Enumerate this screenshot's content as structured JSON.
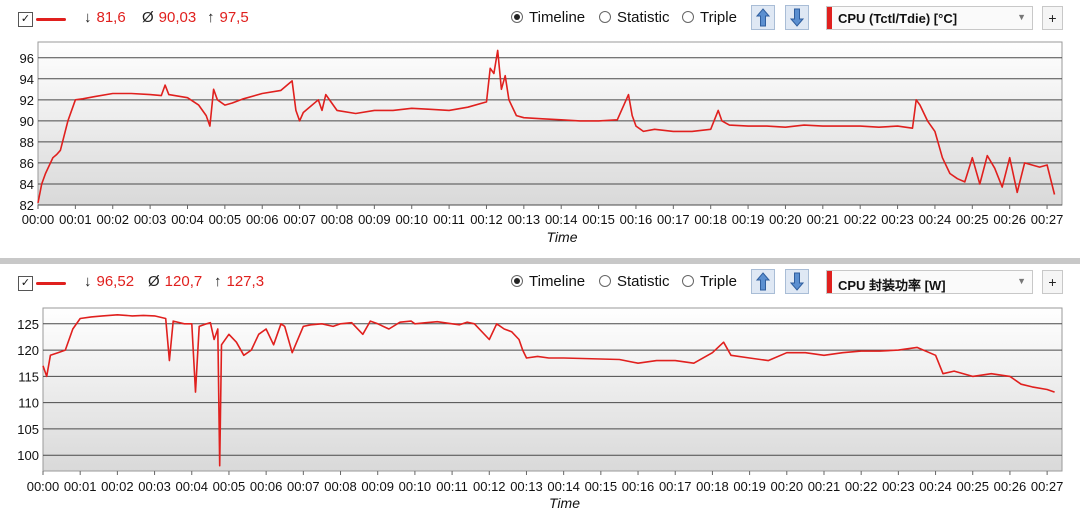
{
  "panels": [
    {
      "toolbar": {
        "checkbox_label": "✓",
        "series_color": "#e0201e",
        "stat_min_symbol": "↓",
        "stat_min": "81,6",
        "stat_avg_symbol": "Ø",
        "stat_avg": "90,03",
        "stat_max_symbol": "↑",
        "stat_max": "97,5",
        "radio_timeline": "Timeline",
        "radio_statistic": "Statistic",
        "radio_triple": "Triple",
        "selected_mode": "Timeline",
        "arrow_up_icon": "arrow-up-icon",
        "arrow_down_icon": "arrow-down-icon",
        "sensor_select": "CPU (Tctl/Tdie) [°C]",
        "add_label": "+"
      }
    },
    {
      "toolbar": {
        "checkbox_label": "✓",
        "series_color": "#e0201e",
        "stat_min_symbol": "↓",
        "stat_min": "96,52",
        "stat_avg_symbol": "Ø",
        "stat_avg": "120,7",
        "stat_max_symbol": "↑",
        "stat_max": "127,3",
        "radio_timeline": "Timeline",
        "radio_statistic": "Statistic",
        "radio_triple": "Triple",
        "selected_mode": "Timeline",
        "arrow_up_icon": "arrow-up-icon",
        "arrow_down_icon": "arrow-down-icon",
        "sensor_select": "CPU 封装功率 [W]",
        "add_label": "+"
      }
    }
  ],
  "chart_data": [
    {
      "type": "line",
      "xlabel": "Time",
      "ylabel": "",
      "xlim": [
        0,
        27.4
      ],
      "ylim": [
        82,
        97.5
      ],
      "y_ticks": [
        82,
        84,
        86,
        88,
        90,
        92,
        94,
        96
      ],
      "x_ticks": [
        "00:00",
        "00:01",
        "00:02",
        "00:03",
        "00:04",
        "00:05",
        "00:06",
        "00:07",
        "00:08",
        "00:09",
        "00:10",
        "00:11",
        "00:12",
        "00:13",
        "00:14",
        "00:15",
        "00:16",
        "00:17",
        "00:18",
        "00:19",
        "00:20",
        "00:21",
        "00:22",
        "00:23",
        "00:24",
        "00:25",
        "00:26",
        "00:27"
      ],
      "x_unit": "minutes",
      "grid": true,
      "line_color": "#e0201e",
      "series": [
        {
          "x": [
            0.0,
            0.1,
            0.2,
            0.4,
            0.5,
            0.6,
            0.8,
            1.0,
            1.2,
            1.5,
            2.0,
            2.5,
            3.0,
            3.3,
            3.4,
            3.5,
            4.0,
            4.3,
            4.5,
            4.6,
            4.7,
            4.8,
            5.0,
            5.2,
            5.5,
            6.0,
            6.5,
            6.8,
            6.9,
            7.0,
            7.1,
            7.5,
            7.6,
            7.7,
            8.0,
            8.5,
            9.0,
            9.5,
            10.0,
            10.5,
            11.0,
            11.5,
            12.0,
            12.1,
            12.2,
            12.3,
            12.4,
            12.5,
            12.6,
            12.8,
            13.0,
            13.5,
            14.0,
            14.5,
            15.0,
            15.5,
            15.8,
            15.9,
            16.0,
            16.2,
            16.5,
            17.0,
            17.5,
            18.0,
            18.2,
            18.3,
            18.5,
            19.0,
            19.5,
            20.0,
            20.5,
            21.0,
            21.5,
            22.0,
            22.5,
            23.0,
            23.4,
            23.5,
            23.6,
            23.8,
            24.0,
            24.2,
            24.4,
            24.6,
            24.8,
            25.0,
            25.2,
            25.4,
            25.6,
            25.8,
            26.0,
            26.2,
            26.4,
            26.6,
            26.8,
            27.0,
            27.2
          ],
          "y": [
            82.2,
            84.0,
            85.0,
            86.5,
            86.8,
            87.2,
            90.0,
            92.0,
            92.1,
            92.3,
            92.6,
            92.6,
            92.5,
            92.4,
            93.4,
            92.5,
            92.2,
            91.5,
            90.5,
            89.5,
            93.0,
            92.0,
            91.5,
            91.7,
            92.1,
            92.6,
            92.9,
            93.8,
            91.0,
            90.0,
            90.8,
            92.0,
            91.0,
            92.5,
            91.0,
            90.7,
            91.0,
            91.0,
            91.2,
            91.1,
            91.0,
            91.3,
            91.8,
            95.0,
            94.5,
            96.7,
            93.0,
            94.3,
            92.0,
            90.5,
            90.3,
            90.2,
            90.1,
            90.0,
            90.0,
            90.1,
            92.5,
            90.5,
            89.5,
            89.0,
            89.2,
            89.0,
            89.0,
            89.2,
            91.0,
            90.0,
            89.6,
            89.5,
            89.5,
            89.4,
            89.6,
            89.5,
            89.5,
            89.5,
            89.4,
            89.5,
            89.3,
            92.0,
            91.5,
            90.0,
            89.0,
            86.5,
            85.0,
            84.5,
            84.2,
            86.5,
            84.0,
            86.7,
            85.5,
            83.7,
            86.5,
            83.2,
            86.0,
            85.8,
            85.6,
            85.8,
            83.0
          ]
        }
      ]
    },
    {
      "type": "line",
      "xlabel": "Time",
      "ylabel": "",
      "xlim": [
        0,
        27.4
      ],
      "ylim": [
        97,
        128
      ],
      "y_ticks": [
        100,
        105,
        110,
        115,
        120,
        125
      ],
      "x_ticks": [
        "00:00",
        "00:01",
        "00:02",
        "00:03",
        "00:04",
        "00:05",
        "00:06",
        "00:07",
        "00:08",
        "00:09",
        "00:10",
        "00:11",
        "00:12",
        "00:13",
        "00:14",
        "00:15",
        "00:16",
        "00:17",
        "00:18",
        "00:19",
        "00:20",
        "00:21",
        "00:22",
        "00:23",
        "00:24",
        "00:25",
        "00:26",
        "00:27"
      ],
      "x_unit": "minutes",
      "grid": true,
      "line_color": "#e0201e",
      "series": [
        {
          "x": [
            0.0,
            0.1,
            0.2,
            0.4,
            0.6,
            0.8,
            1.0,
            1.3,
            1.6,
            2.0,
            2.4,
            2.7,
            3.0,
            3.3,
            3.4,
            3.5,
            3.8,
            4.0,
            4.1,
            4.2,
            4.4,
            4.5,
            4.6,
            4.7,
            4.75,
            4.8,
            5.0,
            5.2,
            5.4,
            5.6,
            5.8,
            6.0,
            6.2,
            6.4,
            6.5,
            6.7,
            7.0,
            7.2,
            7.5,
            7.8,
            8.0,
            8.3,
            8.6,
            8.8,
            9.0,
            9.3,
            9.6,
            9.9,
            10.0,
            10.3,
            10.6,
            11.0,
            11.2,
            11.4,
            11.6,
            12.0,
            12.2,
            12.4,
            12.6,
            12.8,
            12.9,
            13.0,
            13.3,
            13.6,
            14.0,
            14.5,
            15.0,
            15.5,
            16.0,
            16.5,
            17.0,
            17.5,
            18.0,
            18.3,
            18.5,
            19.0,
            19.5,
            20.0,
            20.5,
            21.0,
            21.5,
            22.0,
            22.5,
            23.0,
            23.5,
            24.0,
            24.2,
            24.5,
            25.0,
            25.5,
            26.0,
            26.3,
            26.6,
            27.0,
            27.2
          ],
          "y": [
            117.0,
            115.0,
            119.0,
            119.5,
            120.0,
            124.0,
            126.0,
            126.3,
            126.5,
            126.7,
            126.5,
            126.6,
            126.5,
            126.0,
            118.0,
            125.5,
            125.0,
            125.0,
            112.0,
            124.5,
            125.0,
            125.2,
            122.0,
            124.0,
            98.0,
            121.0,
            123.0,
            121.5,
            119.0,
            120.0,
            123.0,
            124.0,
            121.0,
            125.0,
            124.5,
            119.5,
            124.5,
            124.8,
            125.0,
            124.5,
            125.0,
            125.2,
            123.0,
            125.5,
            125.0,
            124.0,
            125.3,
            125.5,
            125.0,
            125.2,
            125.4,
            125.0,
            124.8,
            125.3,
            125.0,
            122.0,
            125.0,
            124.0,
            123.5,
            122.0,
            120.0,
            118.5,
            118.8,
            118.5,
            118.5,
            118.4,
            118.3,
            118.2,
            117.5,
            118.0,
            118.0,
            117.5,
            119.5,
            121.5,
            119.0,
            118.5,
            118.0,
            119.5,
            119.5,
            119.0,
            119.5,
            119.8,
            119.8,
            120.0,
            120.5,
            119.0,
            115.5,
            116.0,
            115.0,
            115.5,
            115.0,
            113.5,
            113.0,
            112.5,
            112.0
          ]
        }
      ]
    }
  ]
}
